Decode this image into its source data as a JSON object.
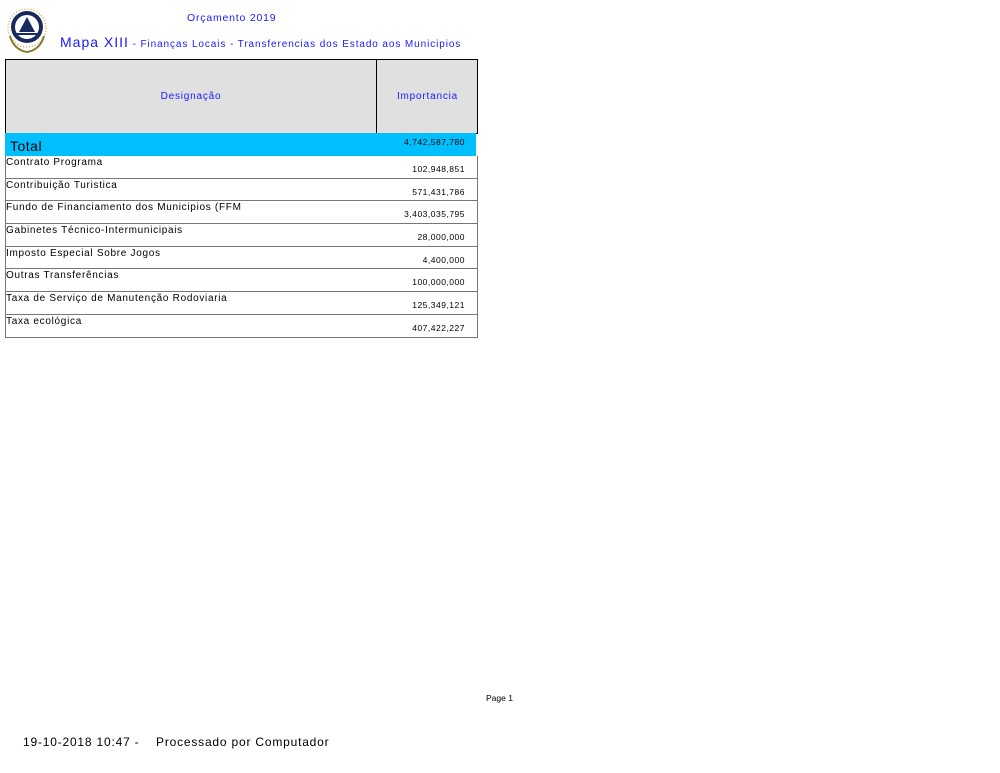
{
  "header": {
    "subtitle": "Orçamento 2019",
    "title_main": "Mapa XIII",
    "title_rest": " - Finanças Locais - Transferencias dos Estado aos Municipios"
  },
  "table": {
    "columns": [
      "Designação",
      "Importancia"
    ],
    "total": {
      "label": "Total",
      "value": "4,742,587,780"
    },
    "rows": [
      {
        "label": "Contrato Programa",
        "value": "102,948,851"
      },
      {
        "label": "Contribuição Turistica",
        "value": "571,431,786"
      },
      {
        "label": "Fundo de Financiamento dos Municipios (FFM",
        "value": "3,403,035,795"
      },
      {
        "label": "Gabinetes Técnico-Intermunicipais",
        "value": "28,000,000"
      },
      {
        "label": "Imposto Especial Sobre Jogos",
        "value": "4,400,000"
      },
      {
        "label": "Outras Transferências",
        "value": "100,000,000"
      },
      {
        "label": "Taxa de Serviço de Manutenção Rodoviaria",
        "value": "125,349,121"
      },
      {
        "label": "Taxa ecológica",
        "value": "407,422,227"
      }
    ]
  },
  "page_label": "Page 1",
  "footer": "19-10-2018 10:47 -    Processado por Computador",
  "colors": {
    "accent_text": "#1a1aff",
    "total_row": "#00bfff",
    "header_bg": "#e0e0e0"
  },
  "logo": "coat-of-arms-cabo-verde"
}
